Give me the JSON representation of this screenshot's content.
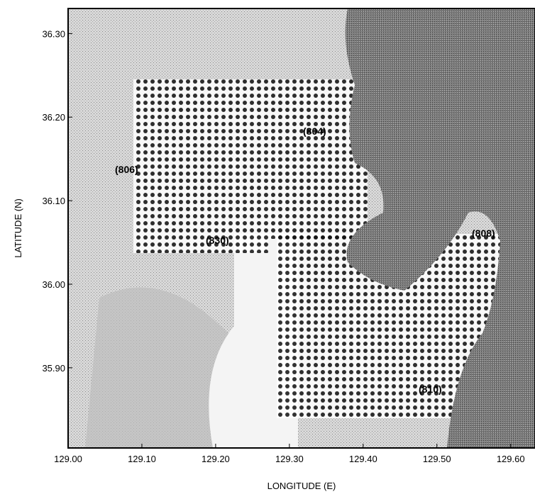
{
  "map": {
    "x_label": "LONGITUDE (E)",
    "y_label": "LATITUDE (N)",
    "xlim": [
      129.0,
      129.633
    ],
    "ylim": [
      35.804,
      36.33
    ],
    "xticks": [
      {
        "value": 129.0,
        "label": "129.00"
      },
      {
        "value": 129.1,
        "label": "129.10"
      },
      {
        "value": 129.2,
        "label": "129.20"
      },
      {
        "value": 129.3,
        "label": "129.30"
      },
      {
        "value": 129.4,
        "label": "129.40"
      },
      {
        "value": 129.5,
        "label": "129.50"
      },
      {
        "value": 129.6,
        "label": "129.60"
      }
    ],
    "yticks": [
      {
        "value": 35.9,
        "label": "35.90"
      },
      {
        "value": 36.0,
        "label": "36.00"
      },
      {
        "value": 36.1,
        "label": "36.10"
      },
      {
        "value": 36.2,
        "label": "36.20"
      },
      {
        "value": 36.3,
        "label": "36.30"
      }
    ]
  },
  "stations": [
    "(804)",
    "(806)",
    "(830)",
    "(808)",
    "(810)"
  ]
}
